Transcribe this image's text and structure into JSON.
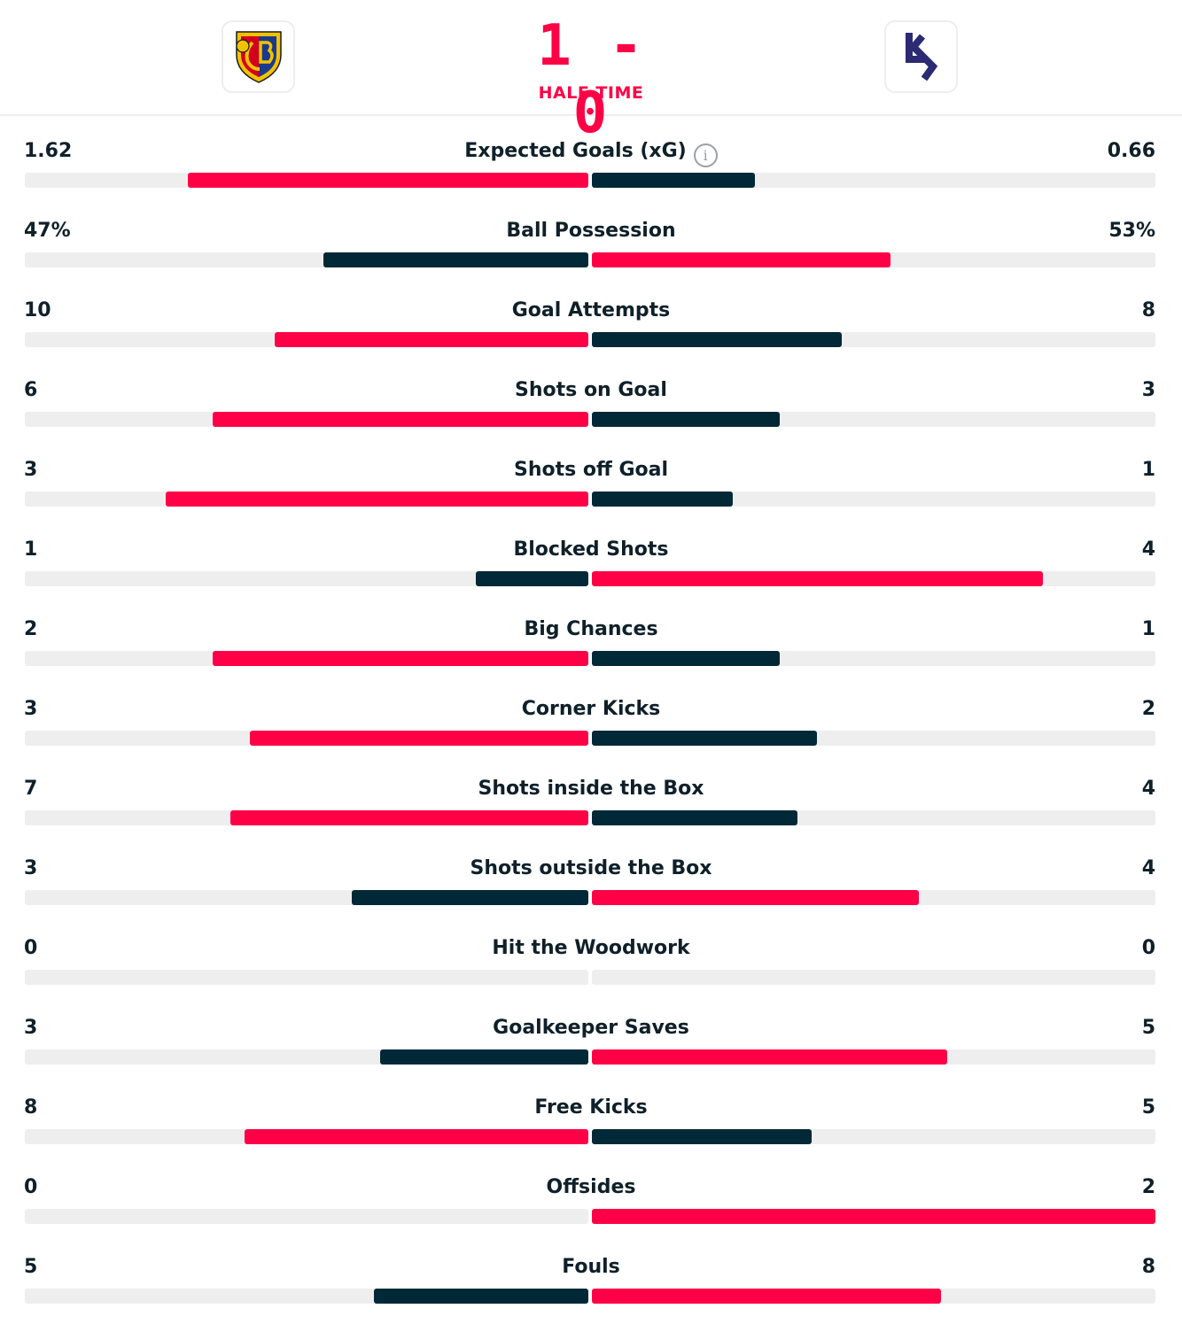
{
  "match": {
    "score": "1 - 0",
    "status": "HALF TIME",
    "home_logo": "fc-basel-crest-icon",
    "away_logo": "lausanne-sport-logo-icon"
  },
  "colors": {
    "leader": "#ff0046",
    "trailer": "#002836",
    "track": "#eeeeee"
  },
  "stats": [
    {
      "label": "Expected Goals (xG)",
      "home": "1.62",
      "away": "0.66",
      "home_value": 1.62,
      "away_value": 0.66,
      "home_bar": 0.711,
      "away_bar": 0.289,
      "info": true
    },
    {
      "label": "Ball Possession",
      "home": "47%",
      "away": "53%",
      "home_value": 47,
      "away_value": 53,
      "home_bar": 0.47,
      "away_bar": 0.53
    },
    {
      "label": "Goal Attempts",
      "home": "10",
      "away": "8",
      "home_value": 10,
      "away_value": 8,
      "home_bar": 0.556,
      "away_bar": 0.444
    },
    {
      "label": "Shots on Goal",
      "home": "6",
      "away": "3",
      "home_value": 6,
      "away_value": 3,
      "home_bar": 0.667,
      "away_bar": 0.333
    },
    {
      "label": "Shots off Goal",
      "home": "3",
      "away": "1",
      "home_value": 3,
      "away_value": 1,
      "home_bar": 0.75,
      "away_bar": 0.25
    },
    {
      "label": "Blocked Shots",
      "home": "1",
      "away": "4",
      "home_value": 1,
      "away_value": 4,
      "home_bar": 0.2,
      "away_bar": 0.8
    },
    {
      "label": "Big Chances",
      "home": "2",
      "away": "1",
      "home_value": 2,
      "away_value": 1,
      "home_bar": 0.667,
      "away_bar": 0.333
    },
    {
      "label": "Corner Kicks",
      "home": "3",
      "away": "2",
      "home_value": 3,
      "away_value": 2,
      "home_bar": 0.6,
      "away_bar": 0.4
    },
    {
      "label": "Shots inside the Box",
      "home": "7",
      "away": "4",
      "home_value": 7,
      "away_value": 4,
      "home_bar": 0.636,
      "away_bar": 0.364
    },
    {
      "label": "Shots outside the Box",
      "home": "3",
      "away": "4",
      "home_value": 3,
      "away_value": 4,
      "home_bar": 0.42,
      "away_bar": 0.58
    },
    {
      "label": "Hit the Woodwork",
      "home": "0",
      "away": "0",
      "home_value": 0,
      "away_value": 0,
      "home_bar": 0,
      "away_bar": 0
    },
    {
      "label": "Goalkeeper Saves",
      "home": "3",
      "away": "5",
      "home_value": 3,
      "away_value": 5,
      "home_bar": 0.37,
      "away_bar": 0.63
    },
    {
      "label": "Free Kicks",
      "home": "8",
      "away": "5",
      "home_value": 8,
      "away_value": 5,
      "home_bar": 0.61,
      "away_bar": 0.39
    },
    {
      "label": "Offsides",
      "home": "0",
      "away": "2",
      "home_value": 0,
      "away_value": 2,
      "home_bar": 0,
      "away_bar": 1.0
    },
    {
      "label": "Fouls",
      "home": "5",
      "away": "8",
      "home_value": 5,
      "away_value": 8,
      "home_bar": 0.38,
      "away_bar": 0.62
    }
  ]
}
